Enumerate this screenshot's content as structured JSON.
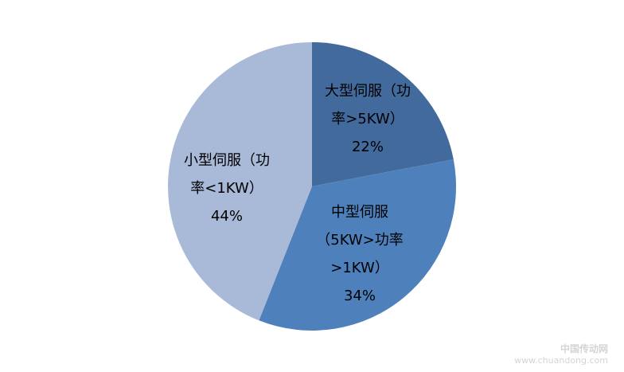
{
  "chart_data": {
    "type": "pie",
    "start_angle": "12 o'clock",
    "direction": "clockwise",
    "slices": [
      {
        "label_lines": [
          "大型伺服（功",
          "率>5KW）"
        ],
        "label": "大型伺服（功率>5KW）",
        "value": 22,
        "percent_label": "22%",
        "color": "#426A9C"
      },
      {
        "label_lines": [
          "中型伺服",
          "（5KW>功率",
          ">1KW）"
        ],
        "label": "中型伺服（5KW>功率>1KW）",
        "value": 34,
        "percent_label": "34%",
        "color": "#4E80BC"
      },
      {
        "label_lines": [
          "小型伺服（功",
          "率<1KW）"
        ],
        "label": "小型伺服（功率<1KW）",
        "value": 44,
        "percent_label": "44%",
        "color": "#A9B9D8"
      }
    ]
  },
  "watermark": {
    "name": "中国传动网",
    "url": "www.chuandong.com"
  }
}
